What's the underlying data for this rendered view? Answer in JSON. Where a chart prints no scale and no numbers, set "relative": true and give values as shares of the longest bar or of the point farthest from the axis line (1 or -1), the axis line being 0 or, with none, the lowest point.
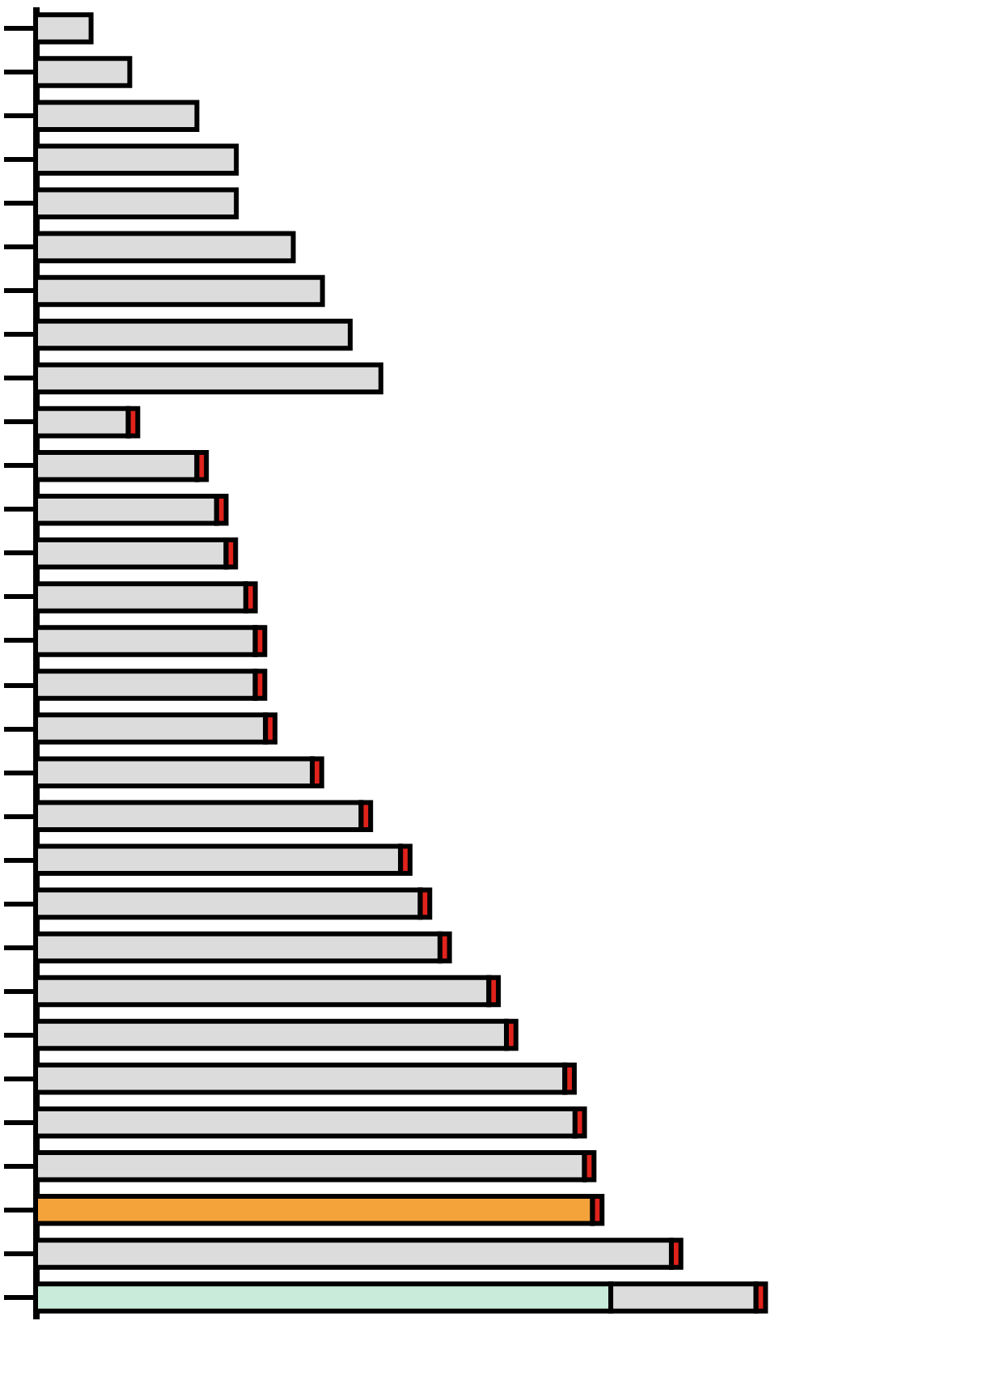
{
  "chart_data": {
    "type": "bar",
    "orientation": "horizontal",
    "stacked": true,
    "relative": true,
    "categories": [
      null,
      null,
      null,
      null,
      null,
      null,
      null,
      null,
      null,
      null,
      null,
      null,
      null,
      null,
      null,
      null,
      null,
      null,
      null,
      null,
      null,
      null,
      null,
      null,
      null,
      null,
      null,
      null,
      null,
      null
    ],
    "series": [
      {
        "colors": [
          "#dcdcdc",
          "#dcdcdc",
          "#dcdcdc",
          "#dcdcdc",
          "#dcdcdc",
          "#dcdcdc",
          "#dcdcdc",
          "#dcdcdc",
          "#dcdcdc",
          "#dcdcdc",
          "#dcdcdc",
          "#dcdcdc",
          "#dcdcdc",
          "#dcdcdc",
          "#dcdcdc",
          "#dcdcdc",
          "#dcdcdc",
          "#dcdcdc",
          "#dcdcdc",
          "#dcdcdc",
          "#dcdcdc",
          "#dcdcdc",
          "#dcdcdc",
          "#dcdcdc",
          "#dcdcdc",
          "#dcdcdc",
          "#dcdcdc",
          "#f4a33b",
          "#dcdcdc",
          "#c8ecd9"
        ],
        "values": [
          0.076,
          0.129,
          0.221,
          0.275,
          0.275,
          0.353,
          0.393,
          0.431,
          0.473,
          0.127,
          0.221,
          0.248,
          0.261,
          0.288,
          0.301,
          0.301,
          0.315,
          0.379,
          0.446,
          0.5,
          0.527,
          0.554,
          0.621,
          0.645,
          0.725,
          0.739,
          0.752,
          0.763,
          0.871,
          0.788
        ]
      },
      {
        "color": "#dcdcdc",
        "values": [
          null,
          null,
          null,
          null,
          null,
          null,
          null,
          null,
          null,
          null,
          null,
          null,
          null,
          null,
          null,
          null,
          null,
          null,
          null,
          null,
          null,
          null,
          null,
          null,
          null,
          null,
          null,
          null,
          null,
          0.199
        ]
      },
      {
        "color": "#e0231c",
        "values": [
          null,
          null,
          null,
          null,
          null,
          null,
          null,
          null,
          null,
          0.013,
          0.013,
          0.013,
          0.013,
          0.013,
          0.013,
          0.013,
          0.013,
          0.013,
          0.013,
          0.013,
          0.013,
          0.013,
          0.013,
          0.013,
          0.013,
          0.013,
          0.013,
          0.013,
          0.013,
          0.013
        ]
      }
    ]
  }
}
